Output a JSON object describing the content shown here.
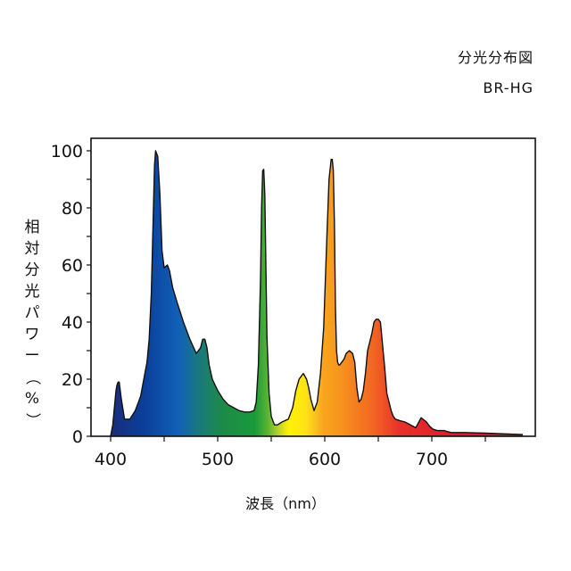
{
  "header": {
    "title": "分光分布図",
    "subtitle": "BR-HG"
  },
  "chart_data": {
    "type": "area",
    "title": "分光分布図",
    "subtitle": "BR-HG",
    "xlabel": "波長（nm）",
    "ylabel": "相対分光パワー（%）",
    "xlim": [
      380,
      785
    ],
    "ylim": [
      0,
      100
    ],
    "x_ticks": [
      400,
      500,
      600,
      700
    ],
    "y_ticks": [
      0,
      20,
      40,
      60,
      80,
      100
    ],
    "grid": false,
    "x": [
      400,
      402,
      404,
      405,
      406,
      407,
      408,
      410,
      413,
      418,
      423,
      428,
      431,
      434,
      436,
      438,
      440,
      441,
      442,
      444,
      446,
      448,
      450,
      453,
      455,
      458,
      462,
      468,
      474,
      480,
      484,
      486,
      488,
      490,
      492,
      495,
      500,
      505,
      510,
      515,
      520,
      525,
      530,
      534,
      536,
      538,
      540,
      541,
      542,
      543,
      544,
      545,
      546,
      548,
      550,
      553,
      556,
      560,
      566,
      570,
      573,
      576,
      578,
      580,
      583,
      585,
      587,
      590,
      593,
      596,
      599,
      602,
      604,
      606,
      607,
      608,
      609,
      610,
      611,
      612,
      613,
      614,
      616,
      618,
      620,
      623,
      626,
      628,
      630,
      632,
      634,
      636,
      638,
      640,
      642,
      644,
      646,
      648,
      650,
      652,
      654,
      656,
      658,
      660,
      662,
      664,
      666,
      670,
      675,
      680,
      685,
      690,
      695,
      698,
      701,
      705,
      708,
      712,
      714,
      716,
      718,
      720,
      722,
      730,
      750,
      785
    ],
    "values": [
      0,
      4,
      12,
      16,
      18,
      19,
      19,
      13,
      6,
      6,
      9,
      14,
      20,
      26,
      34,
      50,
      80,
      95,
      100,
      98,
      85,
      65,
      59,
      60,
      58,
      52,
      47,
      40,
      34,
      29,
      31,
      34,
      34,
      31,
      25,
      20,
      16,
      13,
      11,
      10,
      9,
      8.5,
      8.5,
      9,
      12,
      25,
      55,
      80,
      93,
      93.5,
      85,
      60,
      35,
      15,
      7,
      4,
      4,
      5,
      6,
      10,
      16,
      20,
      21,
      22,
      20,
      17,
      13,
      9,
      12,
      22,
      38,
      70,
      90,
      97,
      97,
      93,
      75,
      45,
      30,
      26,
      25,
      25,
      26,
      27,
      29,
      30,
      29,
      26,
      17,
      12,
      13,
      16,
      22,
      30,
      33,
      36,
      40,
      41,
      41,
      40,
      32,
      24,
      15,
      12,
      9,
      7,
      6,
      5.5,
      5,
      4,
      3,
      6.5,
      5,
      3.5,
      2.5,
      2,
      2,
      2,
      1.7,
      1.5,
      1.3,
      1.3,
      1.3,
      1.3,
      1.1,
      0.6
    ]
  }
}
